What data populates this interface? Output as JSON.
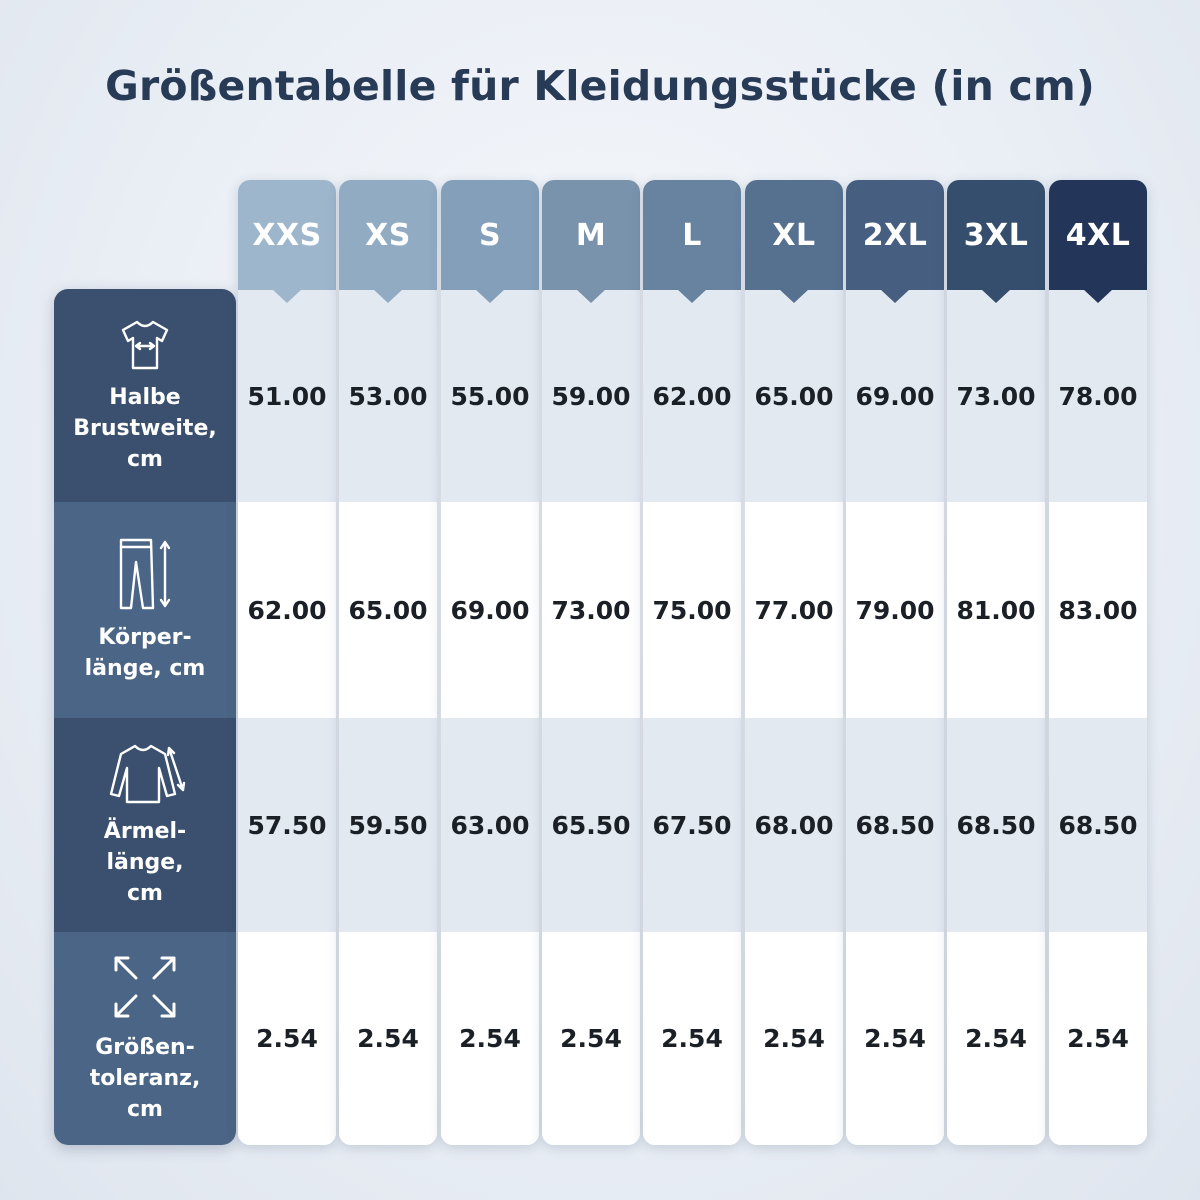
{
  "title": "Größentabelle für Kleidungsstücke (in cm)",
  "sizes": [
    {
      "label": "XXS",
      "color": "#9db6cc"
    },
    {
      "label": "XS",
      "color": "#91abc3"
    },
    {
      "label": "S",
      "color": "#849fb9"
    },
    {
      "label": "M",
      "color": "#7993ad"
    },
    {
      "label": "L",
      "color": "#6883a0"
    },
    {
      "label": "XL",
      "color": "#56708f"
    },
    {
      "label": "2XL",
      "color": "#465f80"
    },
    {
      "label": "3XL",
      "color": "#364e6e"
    },
    {
      "label": "4XL",
      "color": "#23365a"
    }
  ],
  "rows": [
    {
      "label": "Halbe\nBrustweite,\ncm",
      "icon": "tshirt-width-icon",
      "color": "#3a506e",
      "values": [
        "51.00",
        "53.00",
        "55.00",
        "59.00",
        "62.00",
        "65.00",
        "69.00",
        "73.00",
        "78.00"
      ]
    },
    {
      "label": "Körper-\nlänge, cm",
      "icon": "pants-length-icon",
      "color": "#4a6585",
      "values": [
        "62.00",
        "65.00",
        "69.00",
        "73.00",
        "75.00",
        "77.00",
        "79.00",
        "81.00",
        "83.00"
      ]
    },
    {
      "label": "Ärmel-\nlänge,\ncm",
      "icon": "sleeve-length-icon",
      "color": "#3a506e",
      "values": [
        "57.50",
        "59.50",
        "63.00",
        "65.50",
        "67.50",
        "68.00",
        "68.50",
        "68.50",
        "68.50"
      ]
    },
    {
      "label": "Größen-\ntoleranz,\ncm",
      "icon": "expand-arrows-icon",
      "color": "#4a6585",
      "values": [
        "2.54",
        "2.54",
        "2.54",
        "2.54",
        "2.54",
        "2.54",
        "2.54",
        "2.54",
        "2.54"
      ]
    }
  ],
  "row_shading": [
    "#e3e9f1",
    "#ffffff",
    "#e3e9f1",
    "#ffffff"
  ]
}
